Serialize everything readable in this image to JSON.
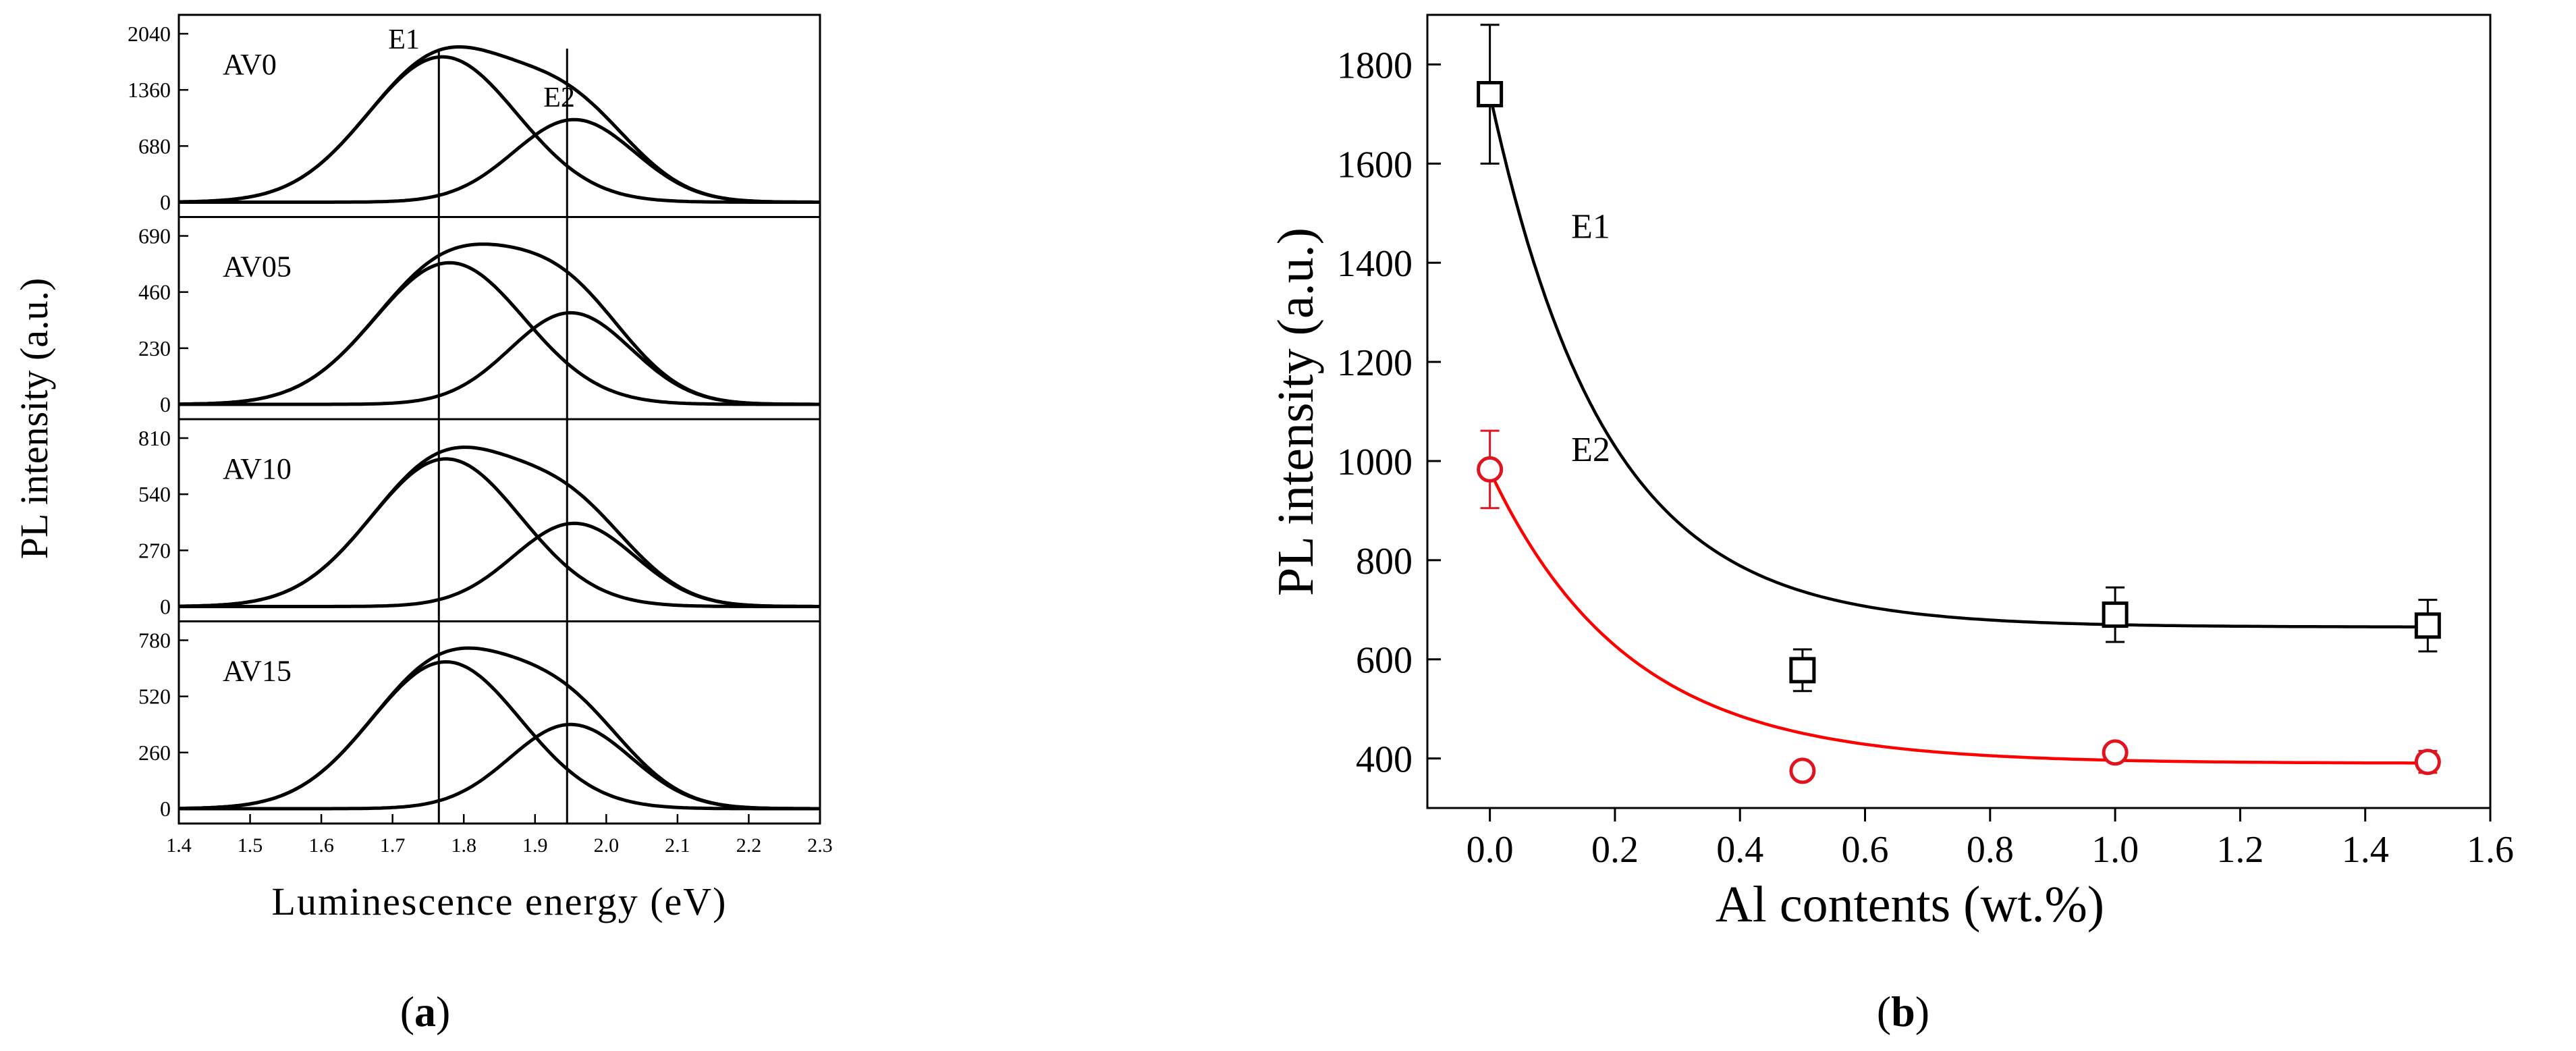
{
  "chart_data": [
    {
      "type": "line",
      "panel_label": "(a)",
      "panel_letter": "a",
      "ylabel": "PL intensity (a.u.)",
      "xlabel": "Luminescence energy (eV)",
      "xlim": [
        1.4,
        2.3
      ],
      "xticks": [
        "1.4",
        "1.5",
        "1.6",
        "1.7",
        "1.8",
        "1.9",
        "2.0",
        "2.1",
        "2.2",
        "2.3"
      ],
      "peak_markers": [
        {
          "name": "E1",
          "x": 1.765
        },
        {
          "name": "E2",
          "x": 1.945
        }
      ],
      "subplots": [
        {
          "name": "AV0",
          "ylim": [
            0,
            2040
          ],
          "yticks": [
            "0",
            "680",
            "1360",
            "2040"
          ],
          "components": [
            {
              "name": "E1",
              "center": 1.77,
              "amplitude": 1760,
              "sigma": 0.105
            },
            {
              "name": "E2",
              "center": 1.955,
              "amplitude": 1000,
              "sigma": 0.085
            }
          ]
        },
        {
          "name": "AV05",
          "ylim": [
            0,
            690
          ],
          "yticks": [
            "0",
            "230",
            "460",
            "690"
          ],
          "components": [
            {
              "name": "E1",
              "center": 1.78,
              "amplitude": 580,
              "sigma": 0.105
            },
            {
              "name": "E2",
              "center": 1.95,
              "amplitude": 375,
              "sigma": 0.085
            }
          ]
        },
        {
          "name": "AV10",
          "ylim": [
            0,
            810
          ],
          "yticks": [
            "0",
            "270",
            "540",
            "810"
          ],
          "components": [
            {
              "name": "E1",
              "center": 1.775,
              "amplitude": 710,
              "sigma": 0.105
            },
            {
              "name": "E2",
              "center": 1.955,
              "amplitude": 400,
              "sigma": 0.085
            }
          ]
        },
        {
          "name": "AV15",
          "ylim": [
            0,
            780
          ],
          "yticks": [
            "0",
            "260",
            "520",
            "780"
          ],
          "components": [
            {
              "name": "E1",
              "center": 1.775,
              "amplitude": 680,
              "sigma": 0.105
            },
            {
              "name": "E2",
              "center": 1.95,
              "amplitude": 390,
              "sigma": 0.085
            }
          ]
        }
      ]
    },
    {
      "type": "scatter",
      "panel_label": "(b)",
      "panel_letter": "b",
      "xlabel": "Al contents (wt.%)",
      "ylabel": "PL intensity (a.u.)",
      "xlim": [
        -0.1,
        1.6
      ],
      "ylim": [
        300,
        1900
      ],
      "xticks": [
        "0.0",
        "0.2",
        "0.4",
        "0.6",
        "0.8",
        "1.0",
        "1.2",
        "1.4",
        "1.6"
      ],
      "yticks": [
        "400",
        "600",
        "800",
        "1000",
        "1200",
        "1400",
        "1600",
        "1800"
      ],
      "series": [
        {
          "name": "E1",
          "marker": "square",
          "color": "#000000",
          "x": [
            0.0,
            0.5,
            1.0,
            1.5
          ],
          "y": [
            1740,
            578,
            690,
            668
          ],
          "yerr": [
            140,
            42,
            55,
            52
          ],
          "fit": {
            "y0": 665,
            "A": 1075,
            "t": 0.185,
            "color": "#000000"
          }
        },
        {
          "name": "E2",
          "marker": "circle",
          "color": "#e0141e",
          "x": [
            0.0,
            0.5,
            1.0,
            1.5
          ],
          "y": [
            983,
            375,
            412,
            393
          ],
          "yerr": [
            78,
            0,
            0,
            22
          ],
          "fit": {
            "y0": 390,
            "A": 590,
            "t": 0.22,
            "color": "#ff0000"
          }
        }
      ]
    }
  ]
}
